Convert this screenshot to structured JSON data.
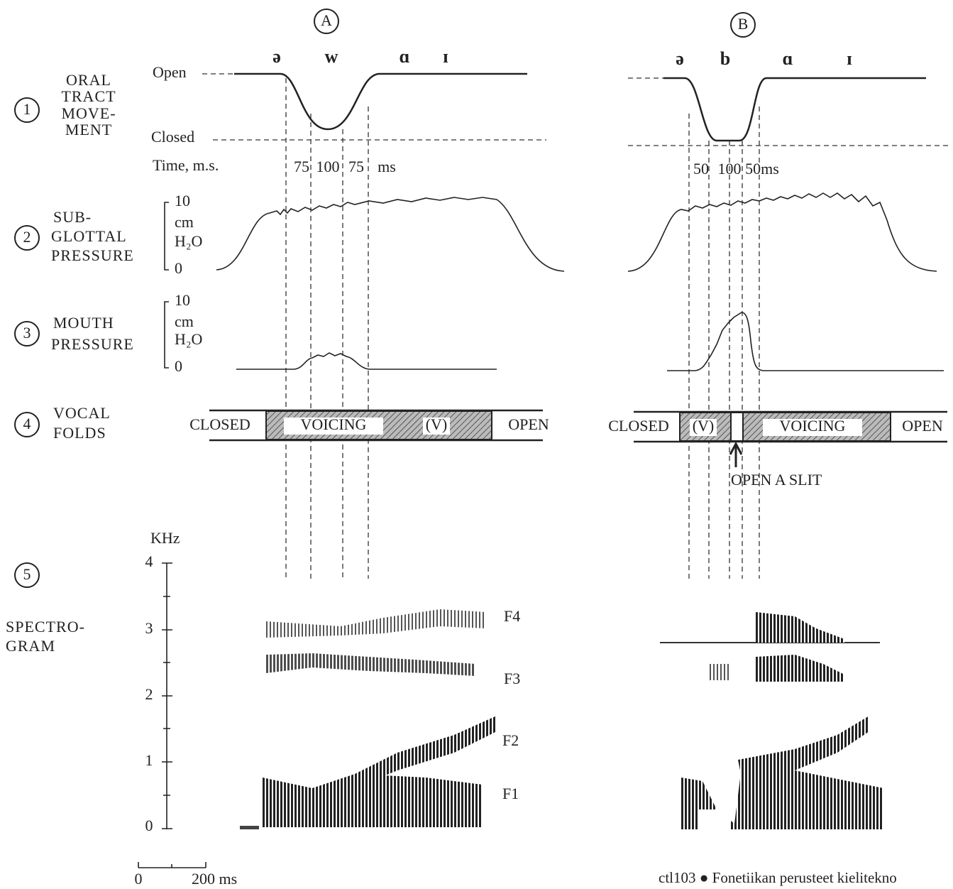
{
  "columns": [
    {
      "label": "A",
      "phones": [
        "ə",
        "w",
        "ɑ",
        "ɪ"
      ],
      "durations": [
        "75",
        "100",
        "75",
        "ms"
      ],
      "vocal_folds": [
        "CLOSED",
        "VOICING",
        "(V)",
        "OPEN"
      ]
    },
    {
      "label": "B",
      "phones": [
        "ə",
        "b",
        "ɑ",
        "ɪ"
      ],
      "durations": [
        "50",
        "100",
        "50ms"
      ],
      "vocal_folds": [
        "CLOSED",
        "(V)",
        "VOICING",
        "OPEN"
      ],
      "note": "OPEN A SLIT"
    }
  ],
  "rows": [
    {
      "number": "1",
      "label": [
        "ORAL",
        "TRACT",
        "MOVE-",
        "MENT"
      ]
    },
    {
      "number": "2",
      "label": [
        "SUB-",
        "GLOTTAL",
        "PRESSURE"
      ],
      "scale": [
        "10",
        "cm",
        "H₂O",
        "0"
      ]
    },
    {
      "number": "3",
      "label": [
        "MOUTH",
        "PRESSURE"
      ],
      "scale": [
        "10",
        "cm",
        "H₂O",
        "0"
      ]
    },
    {
      "number": "4",
      "label": [
        "VOCAL",
        "FOLDS"
      ]
    },
    {
      "number": "5",
      "label": [
        "SPECTRO-",
        "GRAM"
      ]
    }
  ],
  "oral": {
    "open": "Open",
    "closed": "Closed",
    "time": "Time, m.s."
  },
  "spectrogram": {
    "unit": "KHz",
    "ticks": [
      "0",
      "1",
      "2",
      "3",
      "4"
    ],
    "formants": [
      "F4",
      "F3",
      "F2",
      "F1"
    ],
    "time_scale": [
      "0",
      "200 ms"
    ]
  },
  "footer": "ctl103 ● Fonetiikan perusteet kielitekno"
}
